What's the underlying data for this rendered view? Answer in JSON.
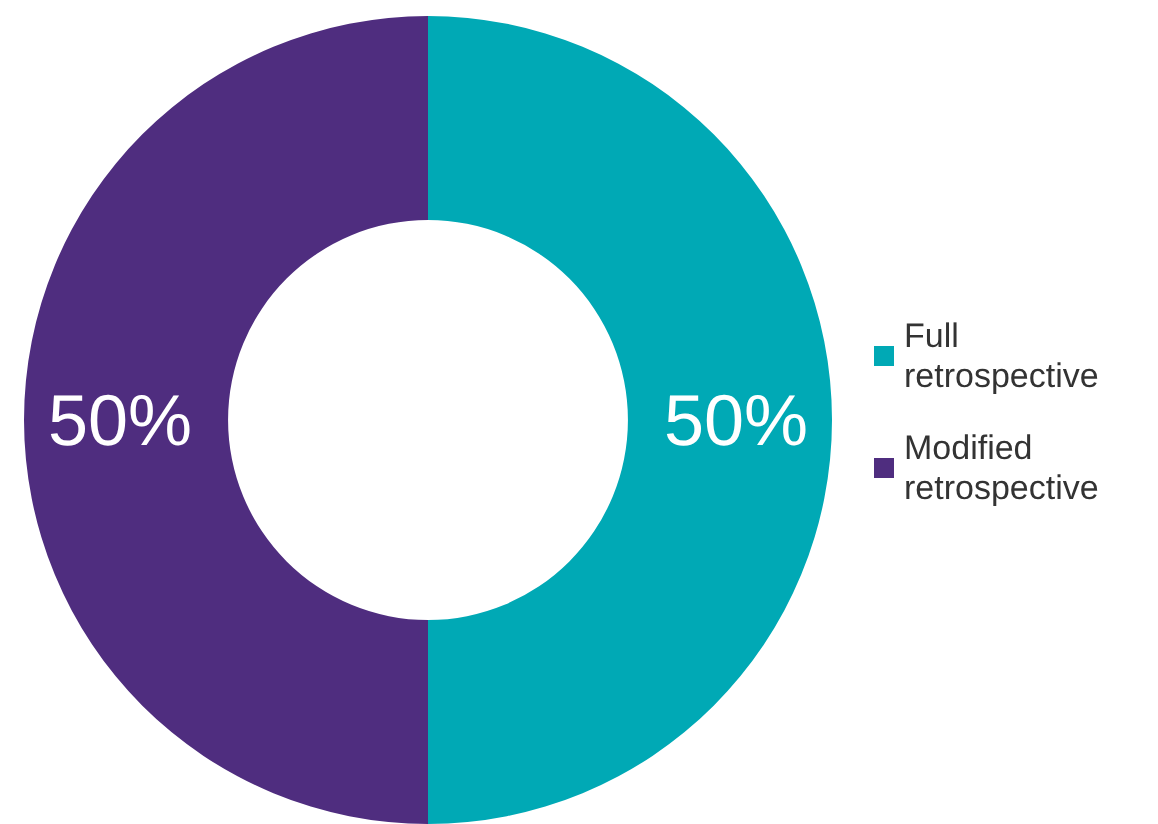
{
  "chart_data": {
    "type": "donut",
    "categories": [
      "Full retrospective",
      "Modified retrospective"
    ],
    "values": [
      50,
      50
    ],
    "colors": [
      "#00a9b5",
      "#4f2d7f"
    ],
    "value_labels": [
      "50%",
      "50%"
    ],
    "legend": "right"
  }
}
